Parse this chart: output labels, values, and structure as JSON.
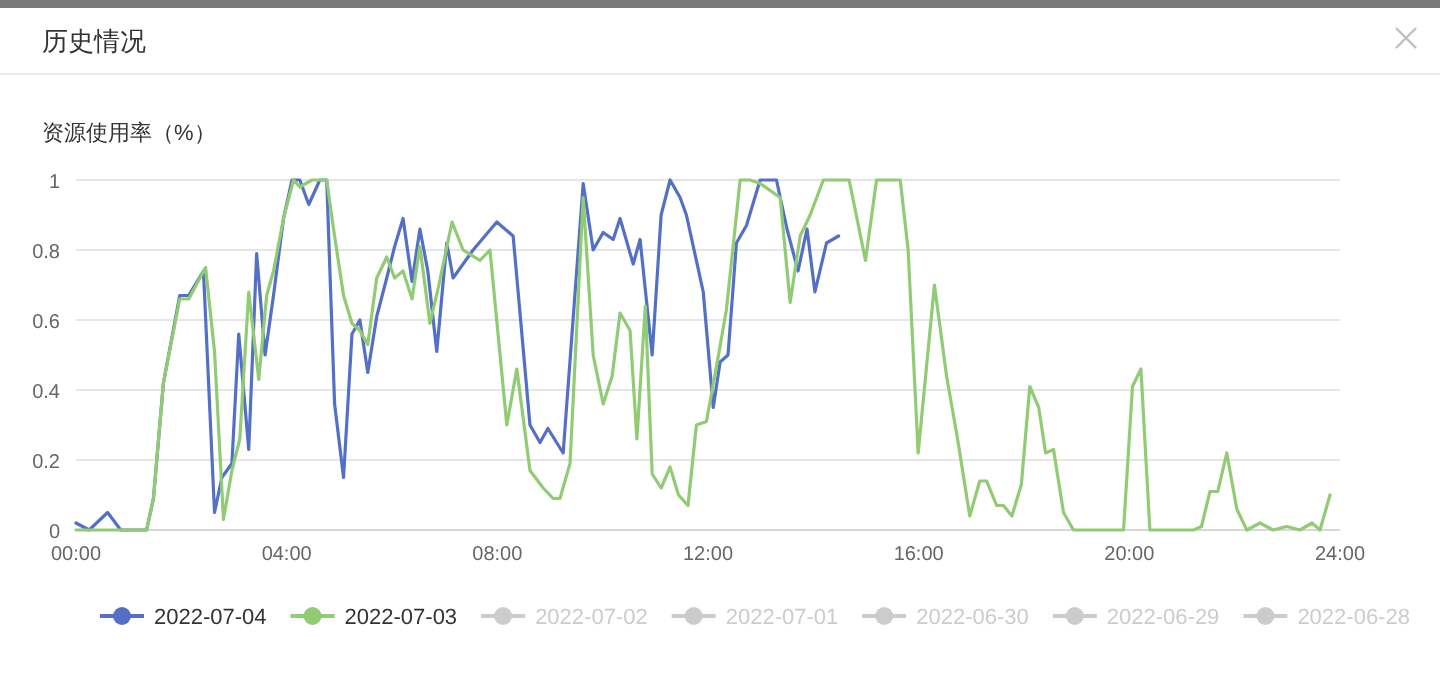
{
  "chart_data": {
    "type": "line",
    "title": "历史情况",
    "ylabel": "资源使用率（%）",
    "xlim": [
      0,
      24
    ],
    "xticks": [
      {
        "value": 0,
        "label": "00:00"
      },
      {
        "value": 4,
        "label": "04:00"
      },
      {
        "value": 8,
        "label": "08:00"
      },
      {
        "value": 12,
        "label": "12:00"
      },
      {
        "value": 16,
        "label": "16:00"
      },
      {
        "value": 20,
        "label": "20:00"
      },
      {
        "value": 24,
        "label": "24:00"
      }
    ],
    "ylim": [
      0,
      1
    ],
    "yticks": [
      0,
      0.2,
      0.4,
      0.6,
      0.8,
      1
    ],
    "grid": "y",
    "legend": "bottom",
    "marker": "none",
    "series": [
      {
        "name": "2022-07-04",
        "color": "#5470c6",
        "x": [
          0,
          0.25,
          0.6,
          0.85,
          1.1,
          1.34,
          1.47,
          1.66,
          1.97,
          2.14,
          2.42,
          2.63,
          2.77,
          2.96,
          3.09,
          3.28,
          3.43,
          3.59,
          3.75,
          3.94,
          4.1,
          4.25,
          4.42,
          4.63,
          4.76,
          4.91,
          5.08,
          5.24,
          5.39,
          5.54,
          5.71,
          5.9,
          6.05,
          6.21,
          6.38,
          6.53,
          6.68,
          6.85,
          7.04,
          7.16,
          7.54,
          7.99,
          8.3,
          8.62,
          8.81,
          8.96,
          9.25,
          9.63,
          9.82,
          10.01,
          10.2,
          10.33,
          10.58,
          10.71,
          10.94,
          11.11,
          11.28,
          11.47,
          11.59,
          11.91,
          12.1,
          12.23,
          12.38,
          12.54,
          12.73,
          12.99,
          13.3,
          13.5,
          13.71,
          13.88,
          14.03,
          14.25,
          14.48
        ],
        "values": [
          0.02,
          0,
          0.05,
          0,
          0,
          0,
          0.09,
          0.42,
          0.67,
          0.67,
          0.74,
          0.05,
          0.15,
          0.19,
          0.56,
          0.23,
          0.79,
          0.5,
          0.67,
          0.89,
          1,
          1,
          0.93,
          1,
          1,
          0.36,
          0.15,
          0.56,
          0.6,
          0.45,
          0.61,
          0.72,
          0.81,
          0.89,
          0.71,
          0.86,
          0.74,
          0.51,
          0.82,
          0.72,
          0.8,
          0.88,
          0.84,
          0.3,
          0.25,
          0.29,
          0.22,
          0.99,
          0.8,
          0.85,
          0.83,
          0.89,
          0.76,
          0.83,
          0.5,
          0.9,
          1,
          0.95,
          0.9,
          0.68,
          0.35,
          0.48,
          0.5,
          0.82,
          0.87,
          1,
          1,
          0.86,
          0.74,
          0.86,
          0.68,
          0.82,
          0.84
        ]
      },
      {
        "name": "2022-07-03",
        "color": "#91cc75",
        "x": [
          0,
          1.1,
          1.34,
          1.47,
          1.66,
          1.97,
          2.14,
          2.46,
          2.63,
          2.8,
          2.96,
          3.11,
          3.28,
          3.47,
          3.62,
          3.75,
          3.94,
          4.13,
          4.25,
          4.48,
          4.76,
          4.89,
          5.08,
          5.24,
          5.39,
          5.54,
          5.71,
          5.9,
          6.05,
          6.21,
          6.38,
          6.53,
          6.72,
          6.89,
          7.14,
          7.35,
          7.67,
          7.86,
          8.18,
          8.37,
          8.62,
          8.87,
          9.06,
          9.19,
          9.38,
          9.63,
          9.82,
          10.01,
          10.18,
          10.33,
          10.52,
          10.65,
          10.81,
          10.94,
          11.11,
          11.28,
          11.44,
          11.62,
          11.78,
          11.97,
          12.2,
          12.35,
          12.61,
          12.8,
          12.99,
          13.37,
          13.56,
          13.75,
          13.94,
          14.19,
          14.68,
          14.99,
          15.2,
          15.65,
          15.8,
          15.99,
          16.3,
          16.53,
          16.75,
          16.97,
          17.16,
          17.29,
          17.48,
          17.61,
          17.77,
          17.95,
          18.11,
          18.28,
          18.41,
          18.56,
          18.75,
          18.94,
          19.89,
          20.06,
          20.22,
          20.39,
          21.22,
          21.37,
          21.53,
          21.68,
          21.85,
          22.04,
          22.23,
          22.48,
          22.73,
          22.99,
          23.24,
          23.47,
          23.62,
          23.81
        ],
        "values": [
          0,
          0,
          0,
          0.09,
          0.42,
          0.66,
          0.66,
          0.75,
          0.51,
          0.03,
          0.17,
          0.26,
          0.68,
          0.43,
          0.67,
          0.74,
          0.89,
          1,
          0.98,
          1,
          1,
          0.86,
          0.67,
          0.59,
          0.57,
          0.53,
          0.72,
          0.78,
          0.72,
          0.74,
          0.66,
          0.81,
          0.59,
          0.7,
          0.88,
          0.8,
          0.77,
          0.8,
          0.3,
          0.46,
          0.17,
          0.12,
          0.09,
          0.09,
          0.19,
          0.95,
          0.5,
          0.36,
          0.44,
          0.62,
          0.57,
          0.26,
          0.64,
          0.16,
          0.12,
          0.18,
          0.1,
          0.07,
          0.3,
          0.31,
          0.5,
          0.63,
          1,
          1,
          0.99,
          0.95,
          0.65,
          0.84,
          0.9,
          1,
          1,
          0.77,
          1,
          1,
          0.8,
          0.22,
          0.7,
          0.44,
          0.25,
          0.04,
          0.14,
          0.14,
          0.07,
          0.07,
          0.04,
          0.13,
          0.41,
          0.35,
          0.22,
          0.23,
          0.05,
          0,
          0,
          0.41,
          0.46,
          0,
          0,
          0.01,
          0.11,
          0.11,
          0.22,
          0.06,
          0,
          0.02,
          0,
          0.01,
          0,
          0.02,
          0,
          0.1
        ]
      },
      {
        "name": "2022-07-02",
        "color": "#cccccc"
      },
      {
        "name": "2022-07-01",
        "color": "#cccccc"
      },
      {
        "name": "2022-06-30",
        "color": "#cccccc"
      },
      {
        "name": "2022-06-29",
        "color": "#cccccc"
      },
      {
        "name": "2022-06-28",
        "color": "#cccccc"
      }
    ]
  }
}
